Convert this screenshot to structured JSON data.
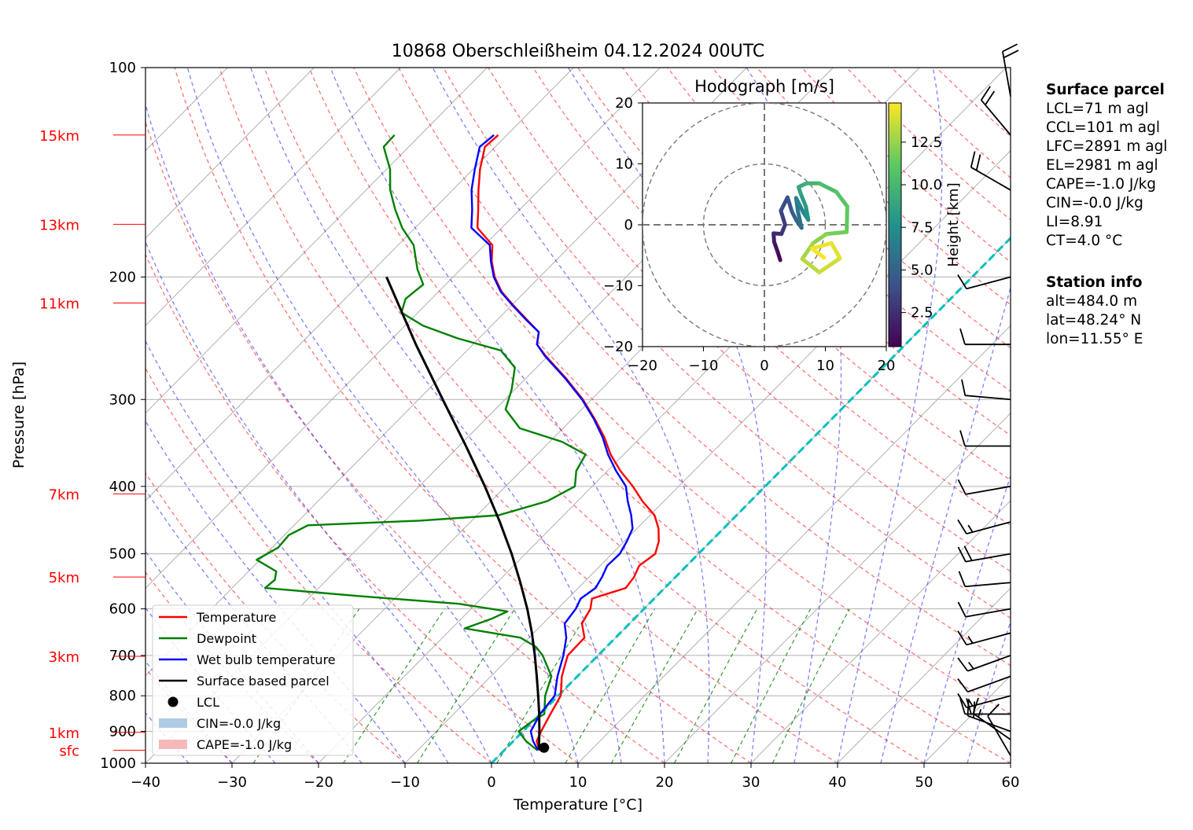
{
  "chart_data": {
    "type": "skew-t",
    "title": "10868 Oberschleißheim 04.12.2024 00UTC",
    "xlabel": "Temperature [°C]",
    "ylabel": "Pressure [hPa]",
    "xlim": [
      -40,
      60
    ],
    "ylim_hpa": [
      1000,
      100
    ],
    "x_ticks": [
      "−40",
      "−30",
      "−20",
      "−10",
      "0",
      "10",
      "20",
      "30",
      "40",
      "50",
      "60"
    ],
    "y_ticks": [
      "100",
      "200",
      "300",
      "400",
      "500",
      "600",
      "700",
      "800",
      "900",
      "1000"
    ],
    "height_labels": [
      {
        "label": "15km",
        "p": 125
      },
      {
        "label": "13km",
        "p": 168
      },
      {
        "label": "11km",
        "p": 218
      },
      {
        "label": "7km",
        "p": 410
      },
      {
        "label": "5km",
        "p": 540
      },
      {
        "label": "3km",
        "p": 702
      },
      {
        "label": "1km",
        "p": 903
      },
      {
        "label": "sfc",
        "p": 958
      }
    ],
    "legend": [
      {
        "label": "Temperature",
        "color": "#ff0000",
        "kind": "line"
      },
      {
        "label": "Dewpoint",
        "color": "#008000",
        "kind": "line"
      },
      {
        "label": "Wet bulb temperature",
        "color": "#0000ff",
        "kind": "line"
      },
      {
        "label": "Surface based parcel",
        "color": "#000000",
        "kind": "line"
      },
      {
        "label": "LCL",
        "color": "#000000",
        "kind": "dot"
      },
      {
        "label": "CIN=-0.0 J/kg",
        "color": "#b0cce4",
        "kind": "patch"
      },
      {
        "label": "CAPE=-1.0 J/kg",
        "color": "#f5b9b9",
        "kind": "patch"
      }
    ],
    "series": [
      {
        "name": "Temperature",
        "color": "#ff0000",
        "points": [
          [
            958,
            4.1
          ],
          [
            930,
            2.7
          ],
          [
            900,
            2.1
          ],
          [
            850,
            1.2
          ],
          [
            800,
            0.3
          ],
          [
            750,
            -1.8
          ],
          [
            700,
            -3.5
          ],
          [
            660,
            -3.6
          ],
          [
            630,
            -5.5
          ],
          [
            600,
            -6.2
          ],
          [
            580,
            -7.2
          ],
          [
            560,
            -4.5
          ],
          [
            540,
            -4.8
          ],
          [
            520,
            -5.5
          ],
          [
            500,
            -5.0
          ],
          [
            480,
            -6.0
          ],
          [
            460,
            -7.5
          ],
          [
            440,
            -9.5
          ],
          [
            420,
            -12.5
          ],
          [
            400,
            -15.3
          ],
          [
            380,
            -18.5
          ],
          [
            360,
            -21.5
          ],
          [
            340,
            -24.2
          ],
          [
            320,
            -27.4
          ],
          [
            300,
            -31.0
          ],
          [
            280,
            -35.3
          ],
          [
            260,
            -40.2
          ],
          [
            250,
            -42.6
          ],
          [
            240,
            -43.8
          ],
          [
            230,
            -46.7
          ],
          [
            220,
            -49.7
          ],
          [
            210,
            -52.7
          ],
          [
            200,
            -55.2
          ],
          [
            190,
            -57.3
          ],
          [
            180,
            -59.1
          ],
          [
            170,
            -62.8
          ],
          [
            160,
            -64.8
          ],
          [
            150,
            -67.0
          ],
          [
            140,
            -69.2
          ],
          [
            130,
            -71.2
          ],
          [
            125,
            -71.0
          ]
        ]
      },
      {
        "name": "Dewpoint",
        "color": "#008000",
        "points": [
          [
            958,
            3.8
          ],
          [
            930,
            1.5
          ],
          [
            900,
            -0.5
          ],
          [
            870,
            -0.1
          ],
          [
            850,
            0.5
          ],
          [
            800,
            -1.5
          ],
          [
            750,
            -3.0
          ],
          [
            700,
            -6.4
          ],
          [
            680,
            -8.2
          ],
          [
            660,
            -11.0
          ],
          [
            640,
            -18.5
          ],
          [
            620,
            -16.5
          ],
          [
            605,
            -15.5
          ],
          [
            590,
            -22.0
          ],
          [
            575,
            -34.5
          ],
          [
            560,
            -46.2
          ],
          [
            545,
            -46.0
          ],
          [
            530,
            -46.8
          ],
          [
            510,
            -50.4
          ],
          [
            490,
            -49.3
          ],
          [
            470,
            -49.5
          ],
          [
            455,
            -48.4
          ],
          [
            448,
            -36.0
          ],
          [
            440,
            -27.5
          ],
          [
            420,
            -23.5
          ],
          [
            400,
            -22.0
          ],
          [
            380,
            -23.6
          ],
          [
            360,
            -24.4
          ],
          [
            345,
            -28.6
          ],
          [
            330,
            -35.0
          ],
          [
            310,
            -38.8
          ],
          [
            290,
            -40.4
          ],
          [
            270,
            -42.5
          ],
          [
            255,
            -46.1
          ],
          [
            245,
            -52.5
          ],
          [
            235,
            -57.9
          ],
          [
            225,
            -61.9
          ],
          [
            215,
            -63.0
          ],
          [
            205,
            -62.6
          ],
          [
            195,
            -65.0
          ],
          [
            180,
            -68.2
          ],
          [
            170,
            -71.5
          ],
          [
            160,
            -74.4
          ],
          [
            150,
            -77.2
          ],
          [
            140,
            -79.6
          ],
          [
            130,
            -82.9
          ],
          [
            125,
            -83.0
          ]
        ]
      },
      {
        "name": "Wet bulb temperature",
        "color": "#0000ff",
        "points": [
          [
            958,
            3.9
          ],
          [
            930,
            2.3
          ],
          [
            900,
            0.9
          ],
          [
            850,
            0.0
          ],
          [
            800,
            -0.4
          ],
          [
            750,
            -2.3
          ],
          [
            700,
            -4.0
          ],
          [
            660,
            -5.7
          ],
          [
            630,
            -7.5
          ],
          [
            600,
            -7.9
          ],
          [
            580,
            -8.5
          ],
          [
            560,
            -8.0
          ],
          [
            540,
            -8.5
          ],
          [
            520,
            -9.2
          ],
          [
            500,
            -9.1
          ],
          [
            480,
            -9.7
          ],
          [
            460,
            -10.5
          ],
          [
            440,
            -12.2
          ],
          [
            420,
            -14.2
          ],
          [
            400,
            -16.1
          ],
          [
            380,
            -19.0
          ],
          [
            360,
            -21.8
          ],
          [
            340,
            -24.4
          ],
          [
            320,
            -27.5
          ],
          [
            300,
            -31.1
          ],
          [
            280,
            -35.4
          ],
          [
            260,
            -40.3
          ],
          [
            250,
            -42.6
          ],
          [
            240,
            -43.8
          ],
          [
            230,
            -46.8
          ],
          [
            220,
            -49.8
          ],
          [
            210,
            -52.8
          ],
          [
            200,
            -55.3
          ],
          [
            190,
            -57.4
          ],
          [
            180,
            -59.4
          ],
          [
            170,
            -63.5
          ],
          [
            160,
            -65.5
          ],
          [
            150,
            -67.8
          ],
          [
            140,
            -69.8
          ],
          [
            130,
            -71.8
          ],
          [
            125,
            -71.5
          ]
        ]
      },
      {
        "name": "Surface based parcel",
        "color": "#000000",
        "points": [
          [
            958,
            4.1
          ],
          [
            950,
            3.7
          ],
          [
            900,
            1.9
          ],
          [
            850,
            -0.1
          ],
          [
            800,
            -2.3
          ],
          [
            750,
            -4.7
          ],
          [
            700,
            -7.3
          ],
          [
            650,
            -10.2
          ],
          [
            600,
            -13.5
          ],
          [
            550,
            -17.3
          ],
          [
            500,
            -21.6
          ],
          [
            450,
            -26.6
          ],
          [
            400,
            -32.4
          ],
          [
            350,
            -39.2
          ],
          [
            300,
            -47.2
          ],
          [
            250,
            -56.6
          ],
          [
            200,
            -67.7
          ]
        ]
      }
    ],
    "lcl": {
      "p": 950,
      "t": 4.3
    },
    "freezing_level_line": {
      "color": "#00bfbf",
      "style": "dashed",
      "value": "0 °C isotherm"
    },
    "wind_barbs": [
      {
        "p": 975,
        "dir": 330,
        "kt": 10
      },
      {
        "p": 925,
        "dir": 305,
        "kt": 15
      },
      {
        "p": 900,
        "dir": 290,
        "kt": 20
      },
      {
        "p": 850,
        "dir": 270,
        "kt": 20
      },
      {
        "p": 800,
        "dir": 255,
        "kt": 15
      },
      {
        "p": 750,
        "dir": 250,
        "kt": 10
      },
      {
        "p": 700,
        "dir": 250,
        "kt": 15
      },
      {
        "p": 650,
        "dir": 255,
        "kt": 15
      },
      {
        "p": 600,
        "dir": 260,
        "kt": 10
      },
      {
        "p": 550,
        "dir": 265,
        "kt": 10
      },
      {
        "p": 500,
        "dir": 260,
        "kt": 20
      },
      {
        "p": 450,
        "dir": 255,
        "kt": 15
      },
      {
        "p": 400,
        "dir": 260,
        "kt": 10
      },
      {
        "p": 350,
        "dir": 270,
        "kt": 10
      },
      {
        "p": 300,
        "dir": 275,
        "kt": 10
      },
      {
        "p": 250,
        "dir": 270,
        "kt": 10
      },
      {
        "p": 200,
        "dir": 255,
        "kt": 10
      },
      {
        "p": 150,
        "dir": 300,
        "kt": 20
      },
      {
        "p": 125,
        "dir": 320,
        "kt": 20
      },
      {
        "p": 110,
        "dir": 350,
        "kt": 20
      }
    ],
    "hodograph": {
      "title": "Hodograph [m/s]",
      "xlim": [
        -20,
        20
      ],
      "ylim": [
        -20,
        20
      ],
      "ticks": [
        "−20",
        "−10",
        "0",
        "10",
        "20"
      ],
      "rings": [
        10,
        20
      ],
      "colorbar_label": "Height [km]",
      "colorbar_ticks": [
        "2.5",
        "5.0",
        "7.5",
        "10.0",
        "12.5"
      ],
      "colorbar_range": [
        0.5,
        14.8
      ],
      "trace": [
        {
          "u": 2.6,
          "v": -5.8,
          "h": 0.5
        },
        {
          "u": 2.2,
          "v": -4.5,
          "h": 1.0
        },
        {
          "u": 1.6,
          "v": -2.8,
          "h": 1.5
        },
        {
          "u": 1.5,
          "v": -1.4,
          "h": 2.0
        },
        {
          "u": 2.8,
          "v": -1.5,
          "h": 2.5
        },
        {
          "u": 3.4,
          "v": 0.0,
          "h": 3.0
        },
        {
          "u": 2.7,
          "v": 2.3,
          "h": 3.5
        },
        {
          "u": 3.8,
          "v": 4.5,
          "h": 4.0
        },
        {
          "u": 4.5,
          "v": 2.2,
          "h": 4.5
        },
        {
          "u": 5.2,
          "v": 0.8,
          "h": 5.0
        },
        {
          "u": 6.1,
          "v": -0.5,
          "h": 5.5
        },
        {
          "u": 5.5,
          "v": 2.2,
          "h": 6.0
        },
        {
          "u": 5.2,
          "v": 4.4,
          "h": 6.5
        },
        {
          "u": 6.4,
          "v": 2.0,
          "h": 7.0
        },
        {
          "u": 7.2,
          "v": 0.8,
          "h": 7.5
        },
        {
          "u": 6.8,
          "v": 3.0,
          "h": 8.0
        },
        {
          "u": 6.0,
          "v": 5.0,
          "h": 8.5
        },
        {
          "u": 5.6,
          "v": 6.2,
          "h": 9.0
        },
        {
          "u": 6.9,
          "v": 6.8,
          "h": 9.5
        },
        {
          "u": 9.0,
          "v": 6.8,
          "h": 10.0
        },
        {
          "u": 11.8,
          "v": 5.4,
          "h": 10.5
        },
        {
          "u": 13.6,
          "v": 3.0,
          "h": 11.0
        },
        {
          "u": 13.5,
          "v": -1.2,
          "h": 11.5
        },
        {
          "u": 10.2,
          "v": -1.5,
          "h": 12.0
        },
        {
          "u": 8.0,
          "v": -3.0,
          "h": 12.5
        },
        {
          "u": 6.2,
          "v": -5.6,
          "h": 13.0
        },
        {
          "u": 9.0,
          "v": -7.8,
          "h": 13.5
        },
        {
          "u": 12.4,
          "v": -5.5,
          "h": 14.0
        },
        {
          "u": 11.0,
          "v": -3.0,
          "h": 14.3
        },
        {
          "u": 7.8,
          "v": -3.9,
          "h": 14.6
        },
        {
          "u": 9.8,
          "v": -5.4,
          "h": 14.8
        }
      ]
    }
  },
  "surface_parcel": {
    "heading": "Surface parcel",
    "lines": [
      "LCL=71 m agl",
      "CCL=101 m agl",
      "LFC=2891 m agl",
      "EL=2981 m agl",
      "CAPE=-1.0 J/kg",
      "CIN=-0.0 J/kg",
      "LI=8.91",
      "CT=4.0 °C"
    ]
  },
  "station_info": {
    "heading": "Station info",
    "lines": [
      "alt=484.0 m",
      "lat=48.24° N",
      "lon=11.55° E"
    ]
  }
}
